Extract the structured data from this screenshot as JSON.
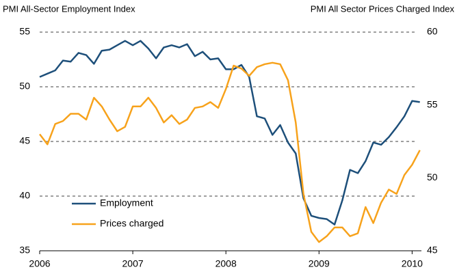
{
  "chart_data": {
    "type": "line",
    "y_axis_title": "PMI All-Sector Employment Index",
    "y2_axis_title": "PMI All Sector Prices Charged Index",
    "x": [
      2006,
      2006.083,
      2006.167,
      2006.25,
      2006.333,
      2006.417,
      2006.5,
      2006.583,
      2006.667,
      2006.75,
      2006.833,
      2006.917,
      2007,
      2007.083,
      2007.167,
      2007.25,
      2007.333,
      2007.417,
      2007.5,
      2007.583,
      2007.667,
      2007.75,
      2007.833,
      2007.917,
      2008,
      2008.083,
      2008.167,
      2008.25,
      2008.333,
      2008.417,
      2008.5,
      2008.583,
      2008.667,
      2008.75,
      2008.833,
      2008.917,
      2009,
      2009.083,
      2009.167,
      2009.25,
      2009.333,
      2009.417,
      2009.5,
      2009.583,
      2009.667,
      2009.75,
      2009.833,
      2009.917,
      2010,
      2010.083
    ],
    "series": [
      {
        "name": "Employment",
        "color": "#1d4f7a",
        "axis": "y",
        "values": [
          50.9,
          51.2,
          51.5,
          52.4,
          52.3,
          53.1,
          52.9,
          52.1,
          53.3,
          53.4,
          53.8,
          54.2,
          53.8,
          54.2,
          53.5,
          52.6,
          53.6,
          53.8,
          53.6,
          53.9,
          52.8,
          53.2,
          52.5,
          52.6,
          51.6,
          51.6,
          52.0,
          50.9,
          47.3,
          47.1,
          45.6,
          46.5,
          44.9,
          43.9,
          39.8,
          38.2,
          38.0,
          37.9,
          37.4,
          39.6,
          42.4,
          42.1,
          43.2,
          44.9,
          44.7,
          45.4,
          46.3,
          47.3,
          48.7,
          48.6
        ]
      },
      {
        "name": "Prices charged",
        "color": "#f7a21b",
        "axis": "y2",
        "values": [
          53.0,
          52.3,
          53.7,
          53.9,
          54.4,
          54.4,
          54.0,
          55.5,
          54.9,
          54.0,
          53.2,
          53.5,
          54.9,
          54.9,
          55.5,
          54.8,
          53.8,
          54.3,
          53.7,
          54.0,
          54.8,
          54.9,
          55.2,
          54.8,
          56.1,
          57.7,
          57.5,
          57.0,
          57.6,
          57.8,
          57.9,
          57.8,
          56.7,
          53.8,
          48.9,
          46.3,
          45.6,
          46.0,
          46.6,
          46.6,
          46.0,
          46.2,
          48.0,
          46.9,
          48.3,
          49.2,
          48.9,
          50.2,
          50.9,
          51.9
        ]
      }
    ],
    "xlim": [
      2006,
      2010.1
    ],
    "xticks": [
      2006,
      2007,
      2008,
      2009,
      2010
    ],
    "ylim": [
      35,
      55
    ],
    "yticks": [
      35,
      40,
      45,
      50,
      55
    ],
    "y2lim": [
      45,
      60
    ],
    "y2ticks": [
      45,
      50,
      55,
      60
    ],
    "grid": true,
    "legend": "lower left"
  }
}
